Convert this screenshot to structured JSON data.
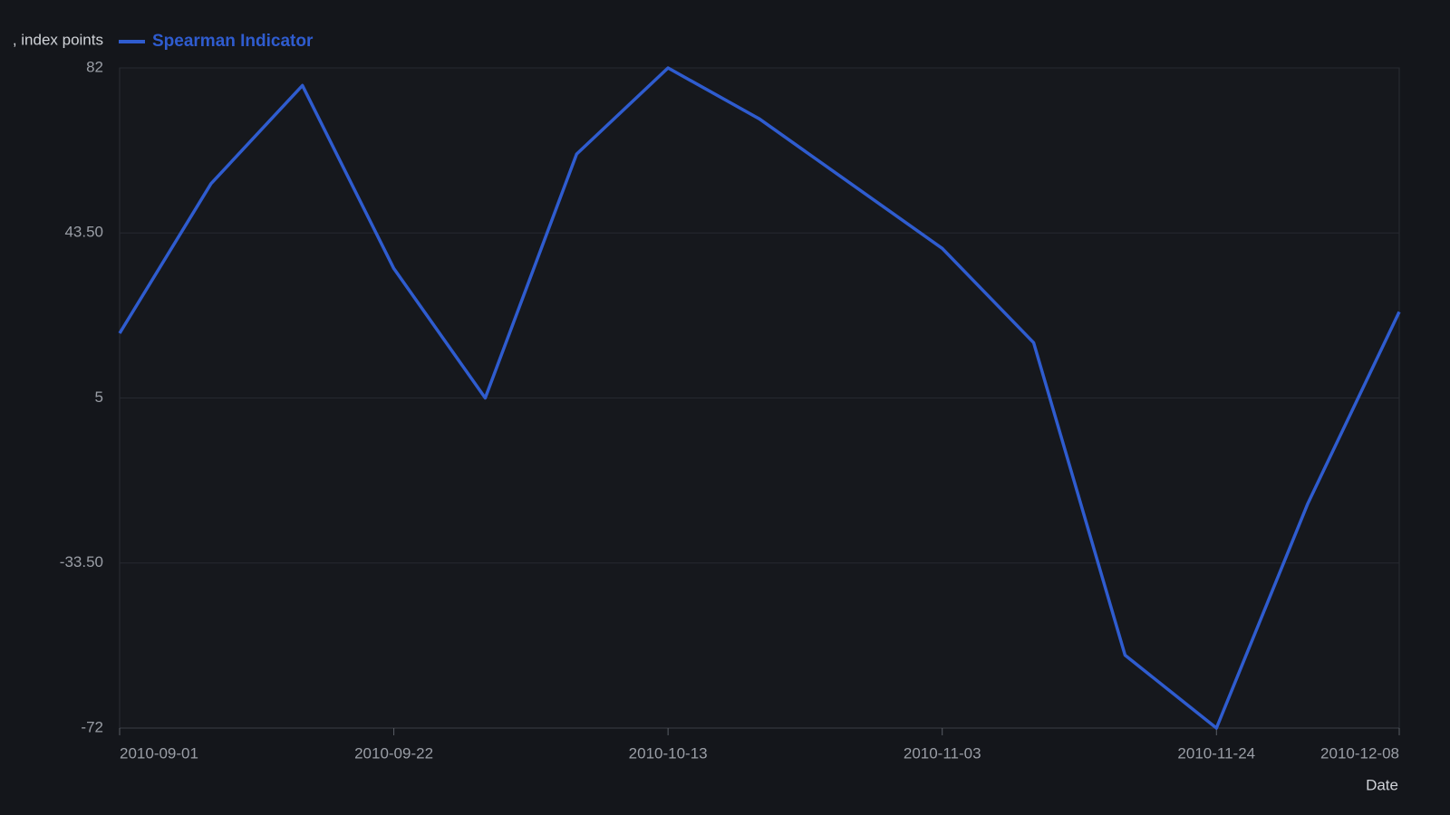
{
  "chart_data": {
    "type": "line",
    "y_label": ", index points",
    "x_label": "Date",
    "x": [
      "2010-09-01",
      "2010-09-08",
      "2010-09-15",
      "2010-09-22",
      "2010-09-29",
      "2010-10-06",
      "2010-10-13",
      "2010-10-20",
      "2010-10-27",
      "2010-11-03",
      "2010-11-10",
      "2010-11-17",
      "2010-11-24",
      "2010-12-01",
      "2010-12-08"
    ],
    "series": [
      {
        "name": "Spearman Indicator",
        "color": "#2f5ccf",
        "values": [
          20.1,
          55,
          77.9,
          35.2,
          5,
          61.9,
          82,
          70.1,
          55,
          39.9,
          17.9,
          -55,
          -72,
          -19.6,
          25.1
        ]
      }
    ],
    "xlim": [
      "2010-09-01",
      "2010-12-08"
    ],
    "xticks": [
      "2010-09-01",
      "2010-09-22",
      "2010-10-13",
      "2010-11-03",
      "2010-11-24",
      "2010-12-08"
    ],
    "ylim": [
      -72,
      82
    ],
    "yticks": [
      -72,
      {
        "value": -33.5,
        "label": "-33.50"
      },
      5,
      {
        "value": 43.5,
        "label": "43.50"
      },
      82
    ],
    "grid": true
  }
}
